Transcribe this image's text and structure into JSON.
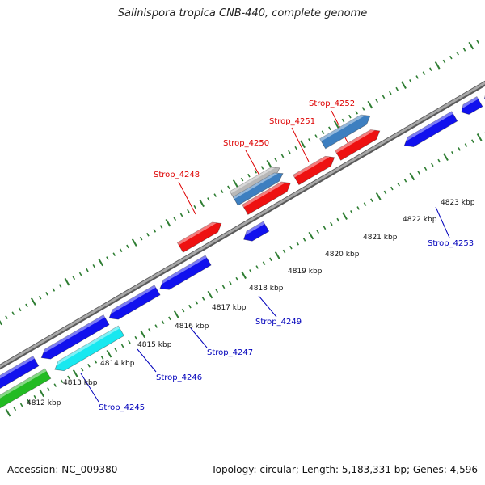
{
  "title": "Salinispora tropica CNB-440, complete genome",
  "accession": "Accession: NC_009380",
  "stats": "Topology: circular; Length: 5,183,331 bp; Genes: 4,596",
  "colors": {
    "backbone": "#8c8c8c",
    "tick": "#2e7d32",
    "forward_gene": "#ee1111",
    "reverse_gene": "#1111ee",
    "forward_label": "#dd0000",
    "reverse_label": "#0000bb",
    "cyan_gene": "#18e8f0",
    "green_gene": "#22bb22",
    "steelblue_gene": "#3d7fc0",
    "grey_gene": "#b8b8b8"
  },
  "kbp_labels": [
    "4812 kbp",
    "4813 kbp",
    "4814 kbp",
    "4815 kbp",
    "4816 kbp",
    "4817 kbp",
    "4818 kbp",
    "4819 kbp",
    "4820 kbp",
    "4821 kbp",
    "4822 kbp",
    "4823 kbp"
  ],
  "forward_gene_labels": [
    "Strop_4248",
    "Strop_4250",
    "Strop_4251",
    "Strop_4252"
  ],
  "reverse_gene_labels": [
    "Strop_4245",
    "Strop_4246",
    "Strop_4247",
    "Strop_4249",
    "Strop_4253"
  ]
}
